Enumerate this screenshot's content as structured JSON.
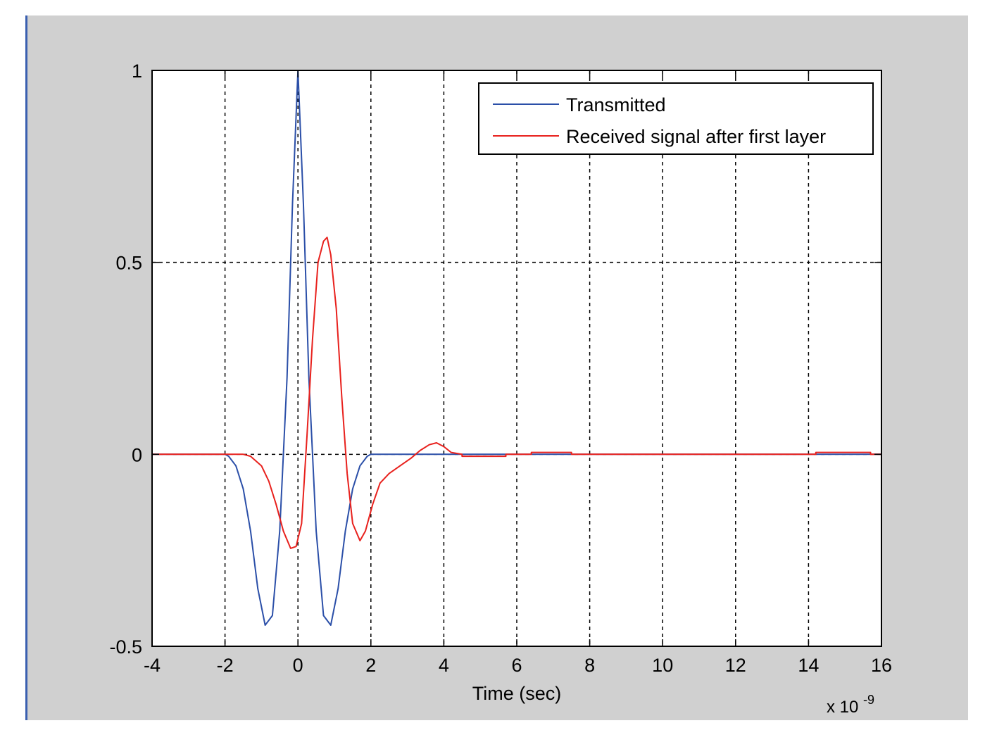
{
  "figure": {
    "background_color": "#d0d0d0",
    "axes_background_color": "#ffffff",
    "window_edge_color": "#3a5fb0"
  },
  "chart_data": {
    "type": "line",
    "title": "",
    "xlabel": "Time (sec)",
    "ylabel": "",
    "x_exponent_label": "x 10",
    "x_exponent_power": "-9",
    "xlim": [
      -4,
      16
    ],
    "ylim": [
      -0.5,
      1
    ],
    "grid": true,
    "legend_position": "top-right",
    "x_ticks": [
      -4,
      -2,
      0,
      2,
      4,
      6,
      8,
      10,
      12,
      14,
      16
    ],
    "x_tick_labels": [
      "-4",
      "-2",
      "0",
      "2",
      "4",
      "6",
      "8",
      "10",
      "12",
      "14",
      "16"
    ],
    "y_ticks": [
      -0.5,
      0,
      0.5,
      1
    ],
    "y_tick_labels": [
      "-0.5",
      "0",
      "0.5",
      "1"
    ],
    "series": [
      {
        "name": "Transmitted",
        "color": "#2b4fa8",
        "points": [
          [
            -4,
            0
          ],
          [
            -2,
            0
          ],
          [
            -1.9,
            -0.005
          ],
          [
            -1.7,
            -0.03
          ],
          [
            -1.5,
            -0.09
          ],
          [
            -1.3,
            -0.2
          ],
          [
            -1.1,
            -0.35
          ],
          [
            -0.9,
            -0.445
          ],
          [
            -0.7,
            -0.42
          ],
          [
            -0.5,
            -0.2
          ],
          [
            -0.3,
            0.2
          ],
          [
            -0.15,
            0.65
          ],
          [
            0,
            1.0
          ],
          [
            0.15,
            0.65
          ],
          [
            0.3,
            0.2
          ],
          [
            0.5,
            -0.2
          ],
          [
            0.7,
            -0.42
          ],
          [
            0.9,
            -0.445
          ],
          [
            1.1,
            -0.35
          ],
          [
            1.3,
            -0.2
          ],
          [
            1.5,
            -0.09
          ],
          [
            1.7,
            -0.03
          ],
          [
            1.9,
            -0.005
          ],
          [
            2,
            0
          ],
          [
            16,
            0
          ]
        ]
      },
      {
        "name": "Received signal after first layer",
        "color": "#e8211d",
        "points": [
          [
            -4,
            0
          ],
          [
            -1.5,
            0
          ],
          [
            -1.3,
            -0.005
          ],
          [
            -1.0,
            -0.03
          ],
          [
            -0.8,
            -0.07
          ],
          [
            -0.6,
            -0.13
          ],
          [
            -0.4,
            -0.2
          ],
          [
            -0.2,
            -0.245
          ],
          [
            -0.05,
            -0.24
          ],
          [
            0.1,
            -0.18
          ],
          [
            0.25,
            0.05
          ],
          [
            0.4,
            0.3
          ],
          [
            0.55,
            0.5
          ],
          [
            0.7,
            0.555
          ],
          [
            0.8,
            0.565
          ],
          [
            0.9,
            0.52
          ],
          [
            1.05,
            0.38
          ],
          [
            1.2,
            0.15
          ],
          [
            1.35,
            -0.05
          ],
          [
            1.5,
            -0.18
          ],
          [
            1.7,
            -0.225
          ],
          [
            1.85,
            -0.2
          ],
          [
            2.05,
            -0.13
          ],
          [
            2.25,
            -0.075
          ],
          [
            2.5,
            -0.05
          ],
          [
            2.8,
            -0.03
          ],
          [
            3.1,
            -0.01
          ],
          [
            3.35,
            0.01
          ],
          [
            3.6,
            0.025
          ],
          [
            3.8,
            0.03
          ],
          [
            4.0,
            0.02
          ],
          [
            4.2,
            0.005
          ],
          [
            4.5,
            0
          ],
          [
            4.5,
            -0.005
          ],
          [
            5.7,
            -0.005
          ],
          [
            5.7,
            0
          ],
          [
            6.4,
            0
          ],
          [
            6.4,
            0.005
          ],
          [
            7.5,
            0.005
          ],
          [
            7.5,
            0
          ],
          [
            14.2,
            0
          ],
          [
            14.2,
            0.005
          ],
          [
            15.7,
            0.005
          ],
          [
            15.7,
            0
          ],
          [
            16,
            0
          ]
        ]
      }
    ]
  }
}
